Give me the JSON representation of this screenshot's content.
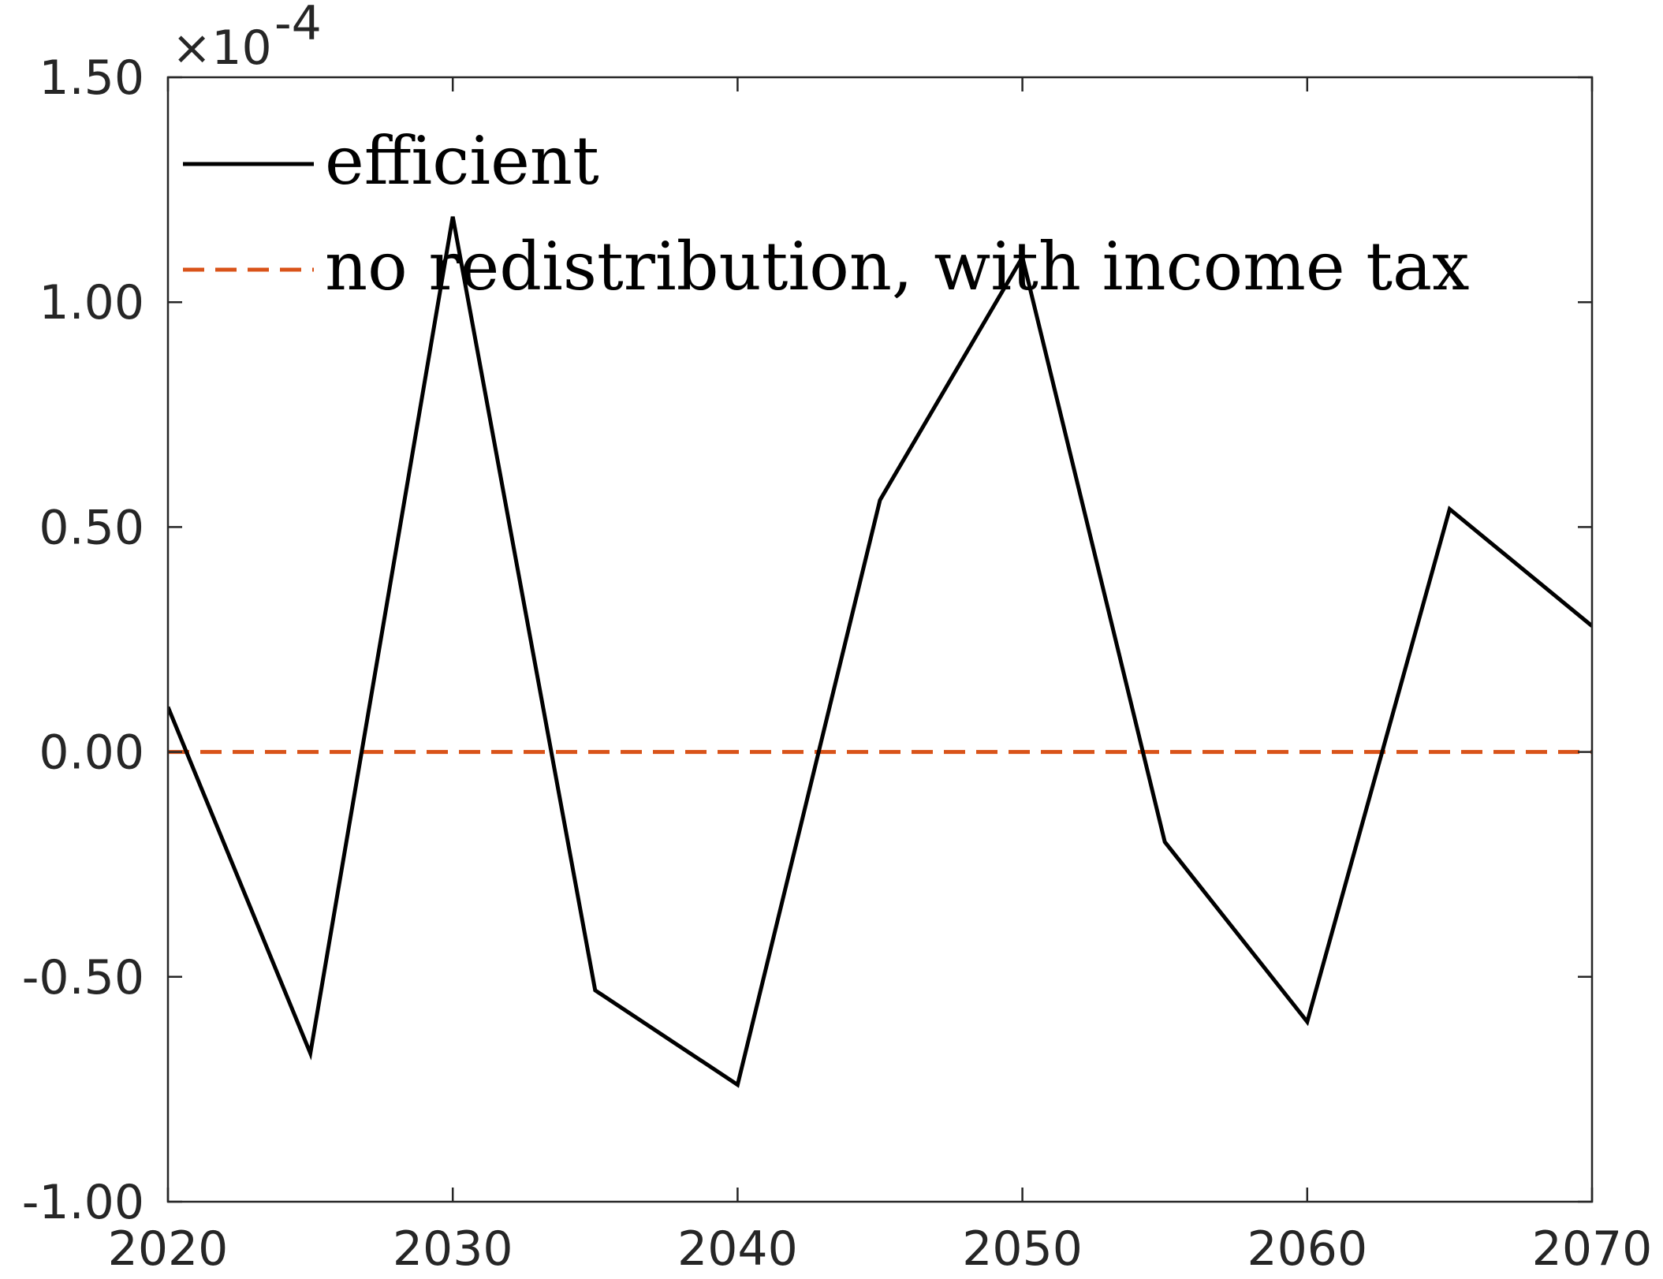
{
  "chart_data": {
    "type": "line",
    "x": [
      2020,
      2025,
      2030,
      2035,
      2040,
      2045,
      2050,
      2055,
      2060,
      2065,
      2070
    ],
    "series": [
      {
        "name": "efficient",
        "values": [
          0.1,
          -0.67,
          1.19,
          -0.53,
          -0.74,
          0.56,
          1.1,
          -0.2,
          -0.6,
          0.54,
          0.28
        ],
        "color": "#000000",
        "style": "solid"
      },
      {
        "name": "no redistribution, with income tax",
        "values": [
          0,
          0,
          0,
          0,
          0,
          0,
          0,
          0,
          0,
          0,
          0
        ],
        "color": "#d95319",
        "style": "dashed"
      }
    ],
    "xlim": [
      2020,
      2070
    ],
    "ylim": [
      -1.0,
      1.5
    ],
    "xticks": [
      2020,
      2030,
      2040,
      2050,
      2060,
      2070
    ],
    "xtick_labels": [
      "2020",
      "2030",
      "2040",
      "2050",
      "2060",
      "2070"
    ],
    "yticks": [
      -1.0,
      -0.5,
      0.0,
      0.5,
      1.0,
      1.5
    ],
    "ytick_labels": [
      "-1.00",
      "-0.50",
      "0.00",
      "0.50",
      "1.00",
      "1.50"
    ],
    "y_multiplier_text": "×10",
    "y_multiplier_exponent": "-4",
    "title": "",
    "xlabel": "",
    "ylabel": "",
    "grid": false,
    "legend_position": "top-left"
  }
}
